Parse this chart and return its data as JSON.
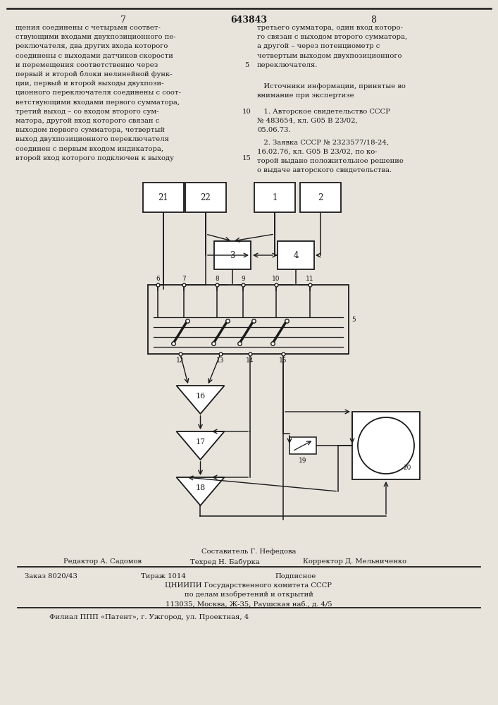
{
  "page_bg": "#e8e4dc",
  "text_color": "#1a1a1a",
  "title_center": "643843",
  "page_left": "7",
  "page_right": "8",
  "left_text": [
    "щения соединены с четырьмя соответ-",
    "ствующими входами двухпозиционного пе-",
    "реключателя, два других входа которого",
    "соединены с выходами датчиков скорости",
    "и перемещения соответственно через",
    "первый и второй блоки нелинейной функ-",
    "ции, первый и второй выходы двухпози-",
    "ционного переключателя соединены с соот-",
    "ветствующими входами первого сумматора,",
    "третий выход – со входом второго сум-",
    "матора, другой вход которого связан с",
    "выходом первого сумматора, четвертый",
    "выход двухпозиционного переключателя",
    "соединен с первым входом индикатора,",
    "второй вход которого подключен к выходу"
  ],
  "right_text_top": [
    "третьего сумматора, один вход которо-",
    "го связан с выходом второго сумматора,",
    "а другой – через потенциометр с",
    "четвертым выходом двухпозиционного",
    "переключателя."
  ],
  "right_text_mid": [
    "   Источники информации, принятые во",
    "внимание при экспертизе"
  ],
  "right_text_refs": [
    "   1. Авторское свидетельство СССР",
    "№ 483654, кл. G05 B 23/02,",
    "05.06.73."
  ],
  "right_text_refs2": [
    "   2. Заявка СССР № 2323577/18-24,",
    "16.02.76, кл. G05 B 23/02, по ко-",
    "торой выдано положительное решение",
    "о выдаче авторского свидетельства."
  ],
  "footer_line1": "Составитель Г. Нефедова",
  "footer_line2a": "Редактор А. Садомов",
  "footer_line2b": "Техред Н. Бабурка",
  "footer_line2c": "Корректор Д. Мельниченко",
  "footer_line3a": "Заказ 8020/43",
  "footer_line3b": "Тираж 1014",
  "footer_line3c": "Подписное",
  "footer_line4": "ЦНИИПИ Государственного комитета СССР",
  "footer_line5": "по делам изобретений и открытий",
  "footer_line6": "113035, Москва, Ж-35, Раушская наб., д. 4/5",
  "footer_line7": "Филиал ППП «Патент», г. Ужгород, ул. Проектная, 4"
}
